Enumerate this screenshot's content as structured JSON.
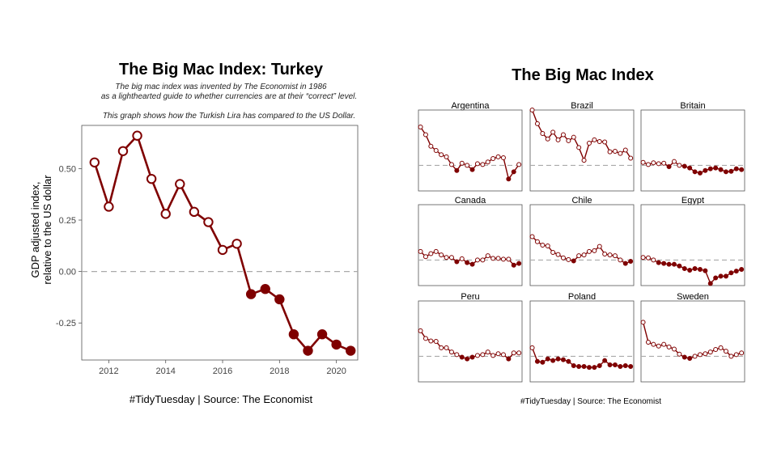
{
  "colors": {
    "series": "#7f0000",
    "open_fill": "#ffffff",
    "zero_line": "#aaaaaa",
    "frame": "#555555",
    "text": "#000000",
    "axis_text": "#444444"
  },
  "left": {
    "title": "The Big Mac Index: Turkey",
    "subtitle_lines": [
      "The big mac index was invented by The Economist in 1986",
      "as a lighthearted guide to whether currencies are at their “correct” level.",
      "",
      "This graph shows how the Turkish Lira has compared to the US Dollar."
    ],
    "ylabel_lines": [
      "GDP adjusted index,",
      "relative to the US dollar"
    ],
    "caption": "#TidyTuesday | Source: The Economist"
  },
  "right": {
    "title": "The Big Mac Index",
    "caption": "#TidyTuesday | Source: The Economist"
  },
  "chart_data": [
    {
      "type": "line",
      "title": "The Big Mac Index: Turkey",
      "ylabel": "GDP adjusted index, relative to the US dollar",
      "xlabel": "",
      "xlim": [
        2011.05,
        2020.75
      ],
      "ylim": [
        -0.43,
        0.71
      ],
      "x_ticks": [
        2012,
        2014,
        2016,
        2018,
        2020
      ],
      "x_tick_labels": [
        "2012",
        "2014",
        "2016",
        "2018",
        "2020"
      ],
      "y_ticks": [
        -0.25,
        0.0,
        0.25,
        0.5
      ],
      "y_tick_labels": [
        "-0.25",
        "0.00",
        "0.25",
        "0.50"
      ],
      "reference_line_y": 0,
      "marker_rule": "open circle when value >= 0, filled when value < 0",
      "x": [
        2011.5,
        2012.0,
        2012.5,
        2013.0,
        2013.5,
        2014.0,
        2014.5,
        2015.0,
        2015.5,
        2016.0,
        2016.5,
        2017.0,
        2017.5,
        2018.0,
        2018.5,
        2019.0,
        2019.5,
        2020.0,
        2020.5
      ],
      "y": [
        0.53,
        0.315,
        0.585,
        0.66,
        0.45,
        0.28,
        0.425,
        0.29,
        0.24,
        0.105,
        0.135,
        -0.11,
        -0.085,
        -0.135,
        -0.305,
        -0.385,
        -0.305,
        -0.355,
        -0.385
      ]
    },
    {
      "type": "line",
      "title": "The Big Mac Index",
      "facets": "3x3 small multiples, shared y scale, no axis labels",
      "xlim": [
        2010.8,
        2020.8
      ],
      "ylim": [
        -0.6,
        1.3
      ],
      "reference_line_y": 0,
      "x": [
        2011.0,
        2011.5,
        2012.0,
        2012.5,
        2013.0,
        2013.5,
        2014.0,
        2014.5,
        2015.0,
        2015.5,
        2016.0,
        2016.5,
        2017.0,
        2017.5,
        2018.0,
        2018.5,
        2019.0,
        2019.5,
        2020.0,
        2020.5
      ],
      "series": [
        {
          "name": "Argentina",
          "values": [
            0.9,
            0.72,
            0.45,
            0.35,
            0.25,
            0.2,
            0.02,
            -0.12,
            0.05,
            0.0,
            -0.1,
            0.04,
            0.02,
            0.08,
            0.16,
            0.2,
            0.18,
            -0.32,
            -0.15,
            0.02
          ]
        },
        {
          "name": "Brazil",
          "values": [
            1.3,
            0.98,
            0.75,
            0.62,
            0.78,
            0.6,
            0.72,
            0.58,
            0.66,
            0.42,
            0.12,
            0.52,
            0.6,
            0.56,
            0.55,
            0.32,
            0.33,
            0.28,
            0.36,
            0.17
          ]
        },
        {
          "name": "Britain",
          "values": [
            0.07,
            0.02,
            0.06,
            0.04,
            0.05,
            -0.03,
            0.09,
            0.0,
            -0.02,
            -0.06,
            -0.15,
            -0.18,
            -0.12,
            -0.08,
            -0.06,
            -0.1,
            -0.15,
            -0.14,
            -0.08,
            -0.1
          ]
        },
        {
          "name": "Canada",
          "values": [
            0.2,
            0.08,
            0.15,
            0.2,
            0.12,
            0.06,
            0.06,
            -0.04,
            0.03,
            -0.06,
            -0.1,
            0.0,
            0.0,
            0.1,
            0.04,
            0.04,
            0.02,
            0.02,
            -0.12,
            -0.08
          ]
        },
        {
          "name": "Chile",
          "values": [
            0.55,
            0.43,
            0.35,
            0.33,
            0.18,
            0.13,
            0.05,
            0.01,
            -0.02,
            0.1,
            0.12,
            0.2,
            0.22,
            0.32,
            0.14,
            0.12,
            0.1,
            0.0,
            -0.08,
            -0.03
          ]
        },
        {
          "name": "Egypt",
          "values": [
            0.06,
            0.05,
            0.0,
            -0.06,
            -0.08,
            -0.1,
            -0.1,
            -0.14,
            -0.2,
            -0.24,
            -0.2,
            -0.22,
            -0.25,
            -0.55,
            -0.42,
            -0.38,
            -0.38,
            -0.3,
            -0.26,
            -0.22
          ]
        },
        {
          "name": "Peru",
          "values": [
            0.6,
            0.42,
            0.36,
            0.35,
            0.2,
            0.2,
            0.1,
            0.04,
            -0.02,
            -0.06,
            -0.02,
            0.02,
            0.04,
            0.1,
            0.02,
            0.06,
            0.04,
            -0.06,
            0.08,
            0.08
          ]
        },
        {
          "name": "Poland",
          "values": [
            0.2,
            -0.12,
            -0.14,
            -0.06,
            -0.1,
            -0.06,
            -0.08,
            -0.12,
            -0.22,
            -0.24,
            -0.24,
            -0.26,
            -0.26,
            -0.22,
            -0.1,
            -0.2,
            -0.2,
            -0.24,
            -0.22,
            -0.24
          ]
        },
        {
          "name": "Sweden",
          "values": [
            0.8,
            0.33,
            0.28,
            0.24,
            0.28,
            0.22,
            0.17,
            0.05,
            -0.02,
            -0.05,
            0.0,
            0.04,
            0.06,
            0.1,
            0.16,
            0.2,
            0.12,
            0.0,
            0.04,
            0.08
          ]
        }
      ]
    }
  ]
}
